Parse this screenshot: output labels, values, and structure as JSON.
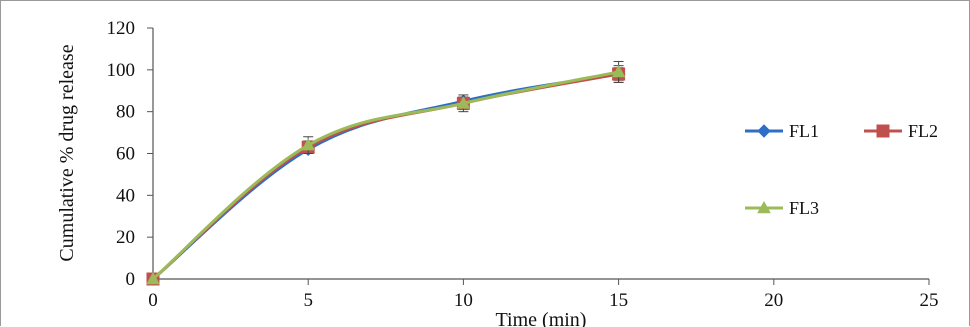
{
  "chart_data": {
    "type": "line",
    "title": "",
    "xlabel": "Time (min)",
    "ylabel": "Cumulative % drug release",
    "xlim": [
      0,
      25
    ],
    "ylim": [
      0,
      120
    ],
    "xticks": [
      "0",
      "5",
      "10",
      "15",
      "20",
      "25"
    ],
    "yticks": [
      "0",
      "20",
      "40",
      "60",
      "80",
      "100",
      "120"
    ],
    "grid": false,
    "legend_position": "right",
    "series": [
      {
        "name": "FL1",
        "color": "#2e6ec6",
        "marker": "diamond",
        "x": [
          0,
          5,
          10,
          15
        ],
        "y": [
          0,
          62,
          85,
          98
        ],
        "error": [
          0,
          2,
          2,
          3
        ]
      },
      {
        "name": "FL2",
        "color": "#c0504d",
        "marker": "square",
        "x": [
          0,
          5,
          10,
          15
        ],
        "y": [
          0,
          63,
          84,
          98
        ],
        "error": [
          0,
          3,
          3,
          4
        ]
      },
      {
        "name": "FL3",
        "color": "#9bbb59",
        "marker": "triangle",
        "x": [
          0,
          5,
          10,
          15
        ],
        "y": [
          0,
          64,
          84,
          99
        ],
        "error": [
          0,
          4,
          4,
          5
        ]
      }
    ]
  }
}
